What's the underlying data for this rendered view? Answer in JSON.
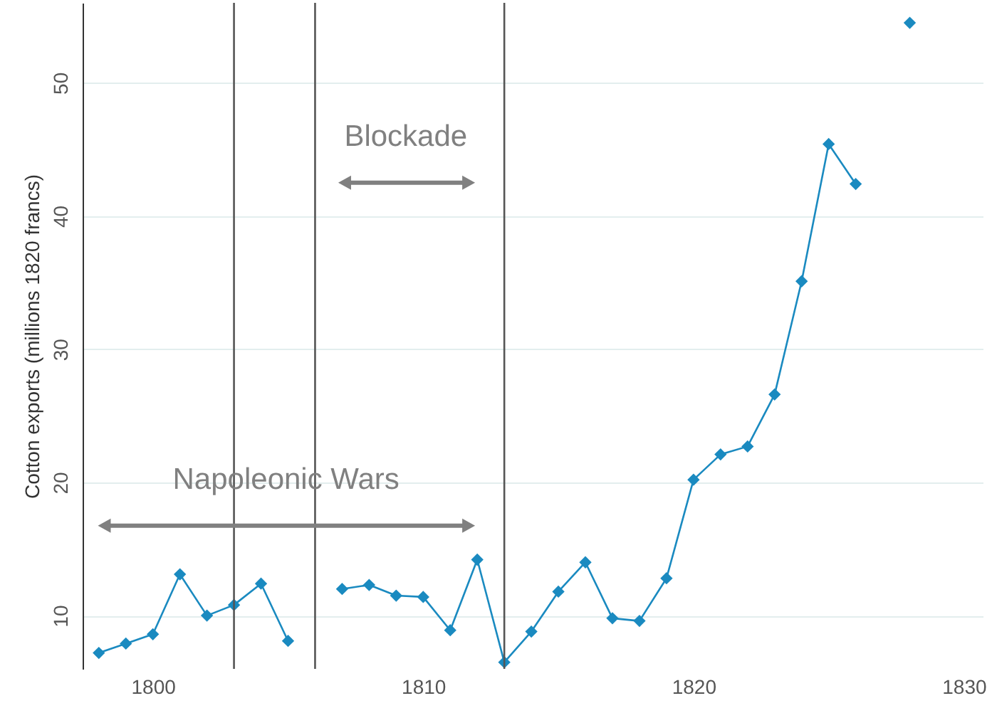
{
  "chart_data": {
    "type": "line",
    "ylabel": "Cotton exports (millions 1820 francs)",
    "x": [
      1798,
      1799,
      1800,
      1801,
      1802,
      1803,
      1804,
      1805,
      1806,
      1807,
      1808,
      1809,
      1810,
      1811,
      1812,
      1813,
      1814,
      1815,
      1816,
      1817,
      1818,
      1819,
      1820,
      1821,
      1822,
      1823,
      1824,
      1825,
      1826,
      1827,
      1828
    ],
    "series": [
      {
        "color": "#1a8ac0",
        "values": [
          7.2,
          7.9,
          8.6,
          13.1,
          10.0,
          10.8,
          12.4,
          8.1,
          null,
          12.0,
          12.3,
          11.5,
          11.4,
          8.9,
          14.2,
          6.5,
          8.8,
          11.8,
          14.0,
          9.8,
          9.6,
          12.8,
          20.2,
          22.1,
          22.7,
          26.6,
          35.1,
          45.4,
          42.4,
          null,
          54.5
        ]
      }
    ],
    "marker": "diamond",
    "grid": "y",
    "xlim": [
      1797.4,
      1830.7
    ],
    "xticks": [
      1800,
      1810,
      1820,
      1830
    ],
    "ylim": [
      6,
      56
    ],
    "yticks": [
      10,
      20,
      30,
      40,
      50
    ],
    "ref_lines": [
      {
        "axis": "x",
        "value": 1803,
        "color": "#555555"
      },
      {
        "axis": "x",
        "value": 1806,
        "color": "#555555"
      },
      {
        "axis": "x",
        "value": 1813,
        "color": "#555555"
      }
    ],
    "annotations": [
      "Napoleonic Wars",
      "Blockade"
    ]
  }
}
